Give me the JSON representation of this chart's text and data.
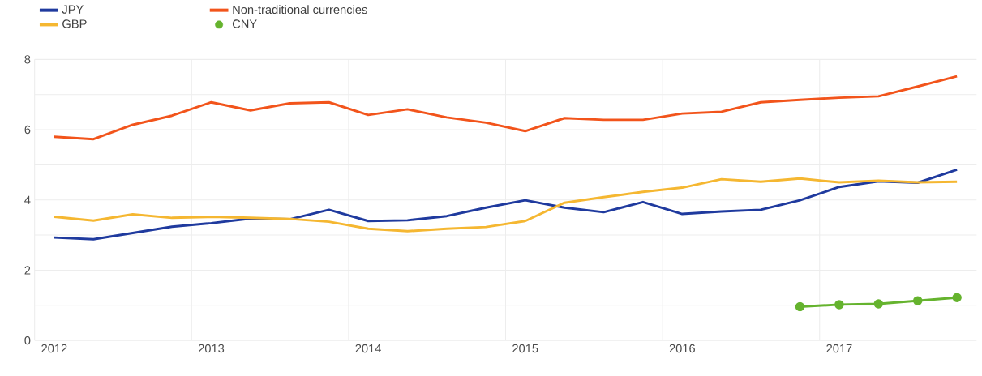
{
  "chart_data": {
    "type": "line",
    "categories": [
      "2012",
      null,
      null,
      null,
      "2013",
      null,
      null,
      null,
      "2014",
      null,
      null,
      null,
      "2015",
      null,
      null,
      null,
      "2016",
      null,
      null,
      null,
      "2017",
      null,
      null,
      null
    ],
    "series": [
      {
        "name": "JPY",
        "color": "#1f3a9e",
        "marker": "none",
        "values": [
          2.93,
          2.88,
          3.06,
          3.24,
          3.34,
          3.47,
          3.45,
          3.72,
          3.4,
          3.42,
          3.54,
          3.78,
          3.99,
          3.78,
          3.65,
          3.94,
          3.6,
          3.67,
          3.72,
          3.99,
          4.37,
          4.53,
          4.49,
          4.86
        ]
      },
      {
        "name": "Non-traditional currencies",
        "color": "#f2541b",
        "marker": "none",
        "values": [
          5.8,
          5.73,
          6.14,
          6.4,
          6.78,
          6.55,
          6.75,
          6.78,
          6.42,
          6.58,
          6.35,
          6.2,
          5.96,
          6.33,
          6.28,
          6.28,
          6.46,
          6.51,
          6.78,
          6.85,
          6.91,
          6.95,
          7.23,
          7.52
        ]
      },
      {
        "name": "GBP",
        "color": "#f5b731",
        "marker": "none",
        "values": [
          3.52,
          3.41,
          3.59,
          3.49,
          3.52,
          3.49,
          3.46,
          3.38,
          3.18,
          3.11,
          3.18,
          3.23,
          3.4,
          3.92,
          4.08,
          4.23,
          4.35,
          4.59,
          4.52,
          4.61,
          4.5,
          4.55,
          4.5,
          4.52
        ]
      },
      {
        "name": "CNY",
        "color": "#65b32e",
        "marker": "circle",
        "values": [
          null,
          null,
          null,
          null,
          null,
          null,
          null,
          null,
          null,
          null,
          null,
          null,
          null,
          null,
          null,
          null,
          null,
          null,
          null,
          0.96,
          1.02,
          1.04,
          1.13,
          1.22
        ]
      }
    ],
    "ylim": [
      0,
      8
    ],
    "yticks": [
      0,
      {
        "value": 1,
        "label": null
      },
      2,
      {
        "value": 3,
        "label": null
      },
      4,
      {
        "value": 5,
        "label": null
      },
      6,
      {
        "value": 7,
        "label": null
      },
      8
    ],
    "grid": true,
    "legend": "top left",
    "line_style": "solid"
  }
}
